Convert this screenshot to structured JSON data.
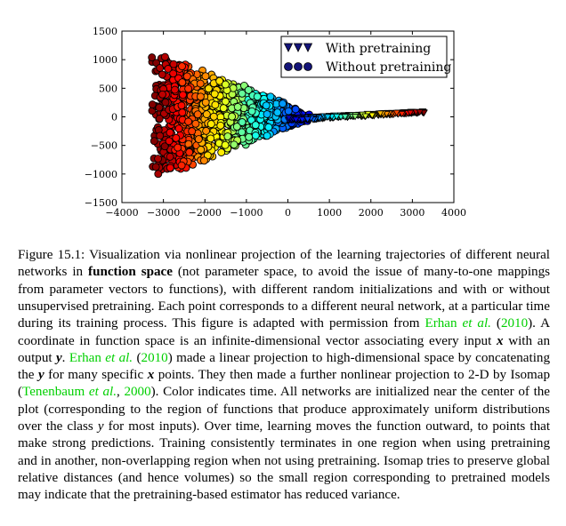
{
  "chart_data": {
    "type": "scatter",
    "title": "",
    "xlabel": "",
    "ylabel": "",
    "xlim": [
      -4000,
      4000
    ],
    "ylim": [
      -1500,
      1500
    ],
    "xticks": [
      -4000,
      -3000,
      -2000,
      -1000,
      0,
      1000,
      2000,
      3000,
      4000
    ],
    "yticks": [
      -1500,
      -1000,
      -500,
      0,
      500,
      1000,
      1500
    ],
    "xtick_labels": [
      "−4000",
      "−3000",
      "−2000",
      "−1000",
      "0",
      "1000",
      "2000",
      "3000",
      "4000"
    ],
    "ytick_labels": [
      "−1500",
      "−1000",
      "−500",
      "0",
      "500",
      "1000",
      "1500"
    ],
    "grid": false,
    "legend_position": "top-right",
    "colormap": "jet",
    "color_encodes": "time",
    "series": [
      {
        "name": "With pretraining",
        "marker": "triangle-down",
        "x_range": [
          0,
          3300
        ],
        "y_range": [
          -60,
          140
        ],
        "points": [
          [
            50,
            0
          ],
          [
            300,
            -20
          ],
          [
            600,
            -30
          ],
          [
            900,
            -10
          ],
          [
            1200,
            10
          ],
          [
            1500,
            20
          ],
          [
            1800,
            40
          ],
          [
            2100,
            50
          ],
          [
            2400,
            60
          ],
          [
            2700,
            80
          ],
          [
            3000,
            90
          ],
          [
            3300,
            100
          ]
        ]
      },
      {
        "name": "Without pretraining",
        "marker": "circle",
        "x_range": [
          -3300,
          500
        ],
        "y_range": [
          -1000,
          1100
        ],
        "points": [
          [
            -3100,
            900
          ],
          [
            -3000,
            1000
          ],
          [
            -2700,
            1000
          ],
          [
            -2500,
            800
          ],
          [
            -2000,
            700
          ],
          [
            -1500,
            400
          ],
          [
            -1000,
            200
          ],
          [
            -500,
            50
          ],
          [
            0,
            0
          ],
          [
            400,
            0
          ],
          [
            -3200,
            300
          ],
          [
            -3100,
            -400
          ],
          [
            -3000,
            -700
          ],
          [
            -2800,
            -900
          ],
          [
            -2400,
            -800
          ],
          [
            -2000,
            -700
          ],
          [
            -1500,
            -400
          ],
          [
            -1000,
            -200
          ],
          [
            -500,
            -80
          ]
        ]
      }
    ],
    "legend": {
      "entries": [
        {
          "label": "With pretraining",
          "marker": "triangle-down"
        },
        {
          "label": "Without pretraining",
          "marker": "circle"
        }
      ]
    }
  },
  "caption": {
    "p01": "Figure 15.1: Visualization via nonlinear projection of the learning trajectories of different neural networks in ",
    "p02": "function space",
    "p03": " (not parameter space, to avoid the issue of many-to-one mappings from parameter vectors to functions), with different random initializations and with or without unsupervised pretraining. Each point corresponds to a different neural network, at a particular time during its training process. This figure is adapted with permission from ",
    "p04": "Erhan ",
    "p05": "et al.",
    "p06": " (",
    "p07": "2010",
    "p08": "). A coordinate in function space is an infinite-dimensional vector associating every input ",
    "p09": "x",
    "p10": " with an output ",
    "p11": "y",
    "p12": ". ",
    "p13": "Erhan ",
    "p14": "et al.",
    "p15": " (",
    "p16": "2010",
    "p17": ") made a linear projection to high-dimensional space by concatenating the ",
    "p18": "y",
    "p19": " for many specific ",
    "p20": "x",
    "p21": " points. They then made a further nonlinear projection to 2-D by Isomap (",
    "p22": "Tenenbaum ",
    "p23": "et al.",
    "p24": ", ",
    "p25": "2000",
    "p26": "). Color indicates time. All networks are initialized near the center of the plot (corresponding to the region of functions that produce approximately uniform distributions over the class ",
    "p27": "y",
    "p28": " for most inputs). Over time, learning moves the function outward, to points that make strong predictions. Training consistently terminates in one region when using pretraining and in another, non-overlapping region when not using pretraining. Isomap tries to preserve global relative distances (and hence volumes) so the small region corresponding to pretrained models may indicate that the pretraining-based estimator has reduced variance."
  }
}
